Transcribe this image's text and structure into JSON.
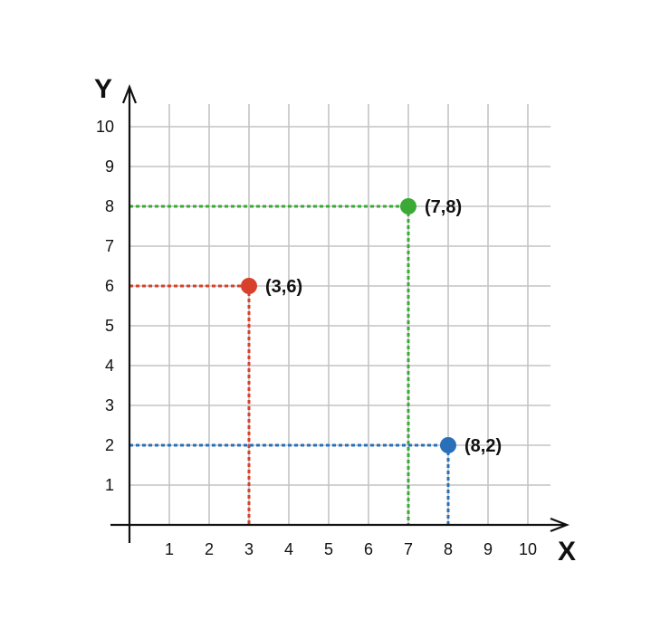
{
  "chart_data": {
    "type": "scatter",
    "xlabel": "X",
    "ylabel": "Y",
    "xlim": [
      0,
      10
    ],
    "ylim": [
      0,
      10
    ],
    "x_ticks": [
      "1",
      "2",
      "3",
      "4",
      "5",
      "6",
      "7",
      "8",
      "9",
      "10"
    ],
    "y_ticks": [
      "1",
      "2",
      "3",
      "4",
      "5",
      "6",
      "7",
      "8",
      "9",
      "10"
    ],
    "grid": true,
    "points": [
      {
        "x": 3,
        "y": 6,
        "label": "(3,6)",
        "color": "#d9402b"
      },
      {
        "x": 7,
        "y": 8,
        "label": "(7,8)",
        "color": "#3aaa35"
      },
      {
        "x": 8,
        "y": 2,
        "label": "(8,2)",
        "color": "#2a70b8"
      }
    ]
  }
}
